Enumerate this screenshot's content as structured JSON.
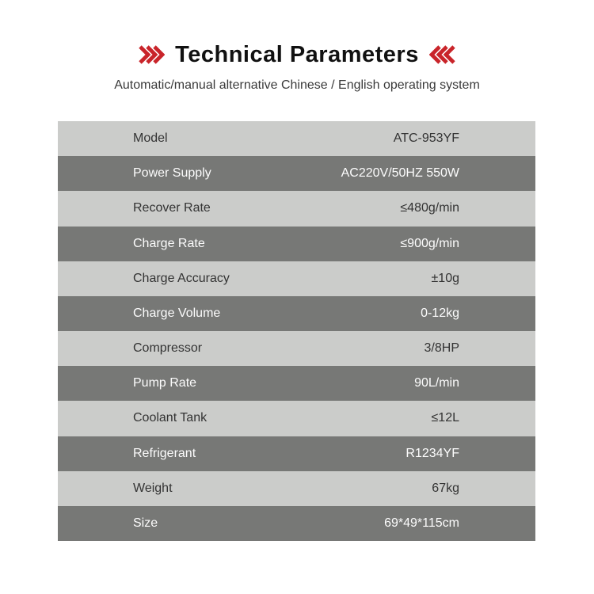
{
  "header": {
    "title": "Technical Parameters",
    "subtitle": "Automatic/manual alternative Chinese / English operating system",
    "left_icon": "chevrons-right",
    "right_icon": "chevrons-left",
    "accent_color": "#c9242a"
  },
  "table": {
    "row_colors": {
      "light_bg": "#cbccca",
      "dark_bg": "#777876",
      "light_text": "#333333",
      "dark_text": "#fcfcfc"
    },
    "rows": [
      {
        "label": "Model",
        "value": "ATC-953YF"
      },
      {
        "label": "Power Supply",
        "value": "AC220V/50HZ 550W"
      },
      {
        "label": "Recover Rate",
        "value": "≤480g/min"
      },
      {
        "label": "Charge Rate",
        "value": "≤900g/min"
      },
      {
        "label": "Charge Accuracy",
        "value": "±10g"
      },
      {
        "label": "Charge Volume",
        "value": "0-12kg"
      },
      {
        "label": "Compressor",
        "value": "3/8HP"
      },
      {
        "label": "Pump Rate",
        "value": "90L/min"
      },
      {
        "label": "Coolant Tank",
        "value": "≤12L"
      },
      {
        "label": "Refrigerant",
        "value": "R1234YF"
      },
      {
        "label": "Weight",
        "value": "67kg"
      },
      {
        "label": "Size",
        "value": "69*49*115cm"
      }
    ]
  }
}
